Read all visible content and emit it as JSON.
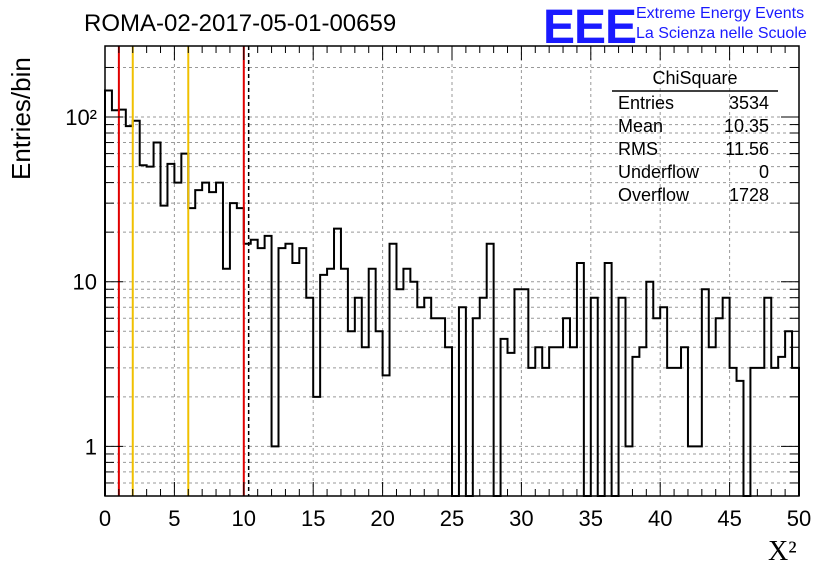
{
  "header": {
    "title": "ROMA-02-2017-05-01-00659",
    "logo_text": "EEE",
    "logo_line1": "Extreme Energy Events",
    "logo_line2": "La Scienza nelle Scuole"
  },
  "stats": {
    "title": "ChiSquare",
    "rows": [
      {
        "name": "Entries",
        "value": "3534"
      },
      {
        "name": "Mean",
        "value": "10.35"
      },
      {
        "name": "RMS",
        "value": "11.56"
      },
      {
        "name": "Underflow",
        "value": "0"
      },
      {
        "name": "Overflow",
        "value": "1728"
      }
    ]
  },
  "chart_data": {
    "type": "bar",
    "style": "step-histogram",
    "title": "ROMA-02-2017-05-01-00659",
    "xlabel": "X²",
    "ylabel": "Entries/bin",
    "xlim": [
      0,
      50
    ],
    "ylim": [
      0.5,
      270
    ],
    "yscale": "log",
    "grid": true,
    "bin_width": 0.5,
    "x_ticks": [
      "0",
      "5",
      "10",
      "15",
      "20",
      "25",
      "30",
      "35",
      "40",
      "45",
      "50"
    ],
    "y_ticks": [
      {
        "value": 1,
        "label": "1"
      },
      {
        "value": 10,
        "label": "10"
      },
      {
        "value": 100,
        "label": "10²"
      }
    ],
    "values": [
      145,
      110,
      111,
      88,
      95,
      51,
      50,
      70,
      29,
      52,
      40,
      60,
      28,
      36,
      40,
      35,
      40,
      12,
      30,
      28,
      17,
      18,
      16,
      19,
      1,
      16,
      17,
      13,
      16,
      8,
      2,
      11,
      12,
      21,
      12,
      5,
      8,
      4,
      12,
      5,
      2.7,
      17,
      9,
      12,
      10,
      7,
      8,
      6,
      6,
      4,
      0.5,
      7,
      0.5,
      6,
      8,
      17,
      0.5,
      4.5,
      3.7,
      9,
      9,
      3,
      4,
      3,
      4,
      4,
      6,
      4,
      13,
      0.5,
      8,
      0.5,
      13,
      0.5,
      8,
      1,
      3.5,
      4,
      10,
      6,
      7,
      3,
      3,
      4,
      1,
      1,
      9,
      4,
      6,
      8,
      3,
      2.5,
      0.5,
      3,
      3,
      8,
      3,
      3.5,
      5,
      3
    ],
    "vlines": [
      {
        "x": 1,
        "color": "#e00000",
        "style": "solid"
      },
      {
        "x": 2,
        "color": "#f0c000",
        "style": "solid"
      },
      {
        "x": 6,
        "color": "#f0c000",
        "style": "solid"
      },
      {
        "x": 10,
        "color": "#e00000",
        "style": "solid"
      },
      {
        "x": 10.35,
        "color": "#000000",
        "style": "dashed"
      }
    ]
  }
}
